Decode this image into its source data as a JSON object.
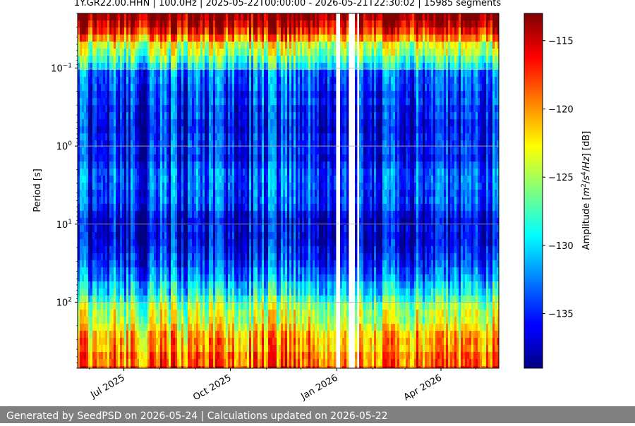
{
  "chart_data": {
    "type": "heatmap",
    "title": "1Y.GR22.00.HHN | 100.0Hz | 2025-05-22T00:00:00 - 2026-05-21T22:30:02 | 15985 segments",
    "xlabel": "",
    "ylabel": "Period [s]",
    "colorbar_label": "Amplitude [m²/s⁴/Hz] [dB]",
    "colorbar_label_parts": [
      "Amplitude [",
      "m",
      "2",
      "/",
      "s",
      "4",
      "/",
      "Hz",
      "] [dB]"
    ],
    "colormap": "jet",
    "x_range": [
      "2025-05-22",
      "2026-05-21"
    ],
    "x_ticks": [
      {
        "date": "2025-07-01",
        "label": "Jul 2025"
      },
      {
        "date": "2025-10-01",
        "label": "Oct 2025"
      },
      {
        "date": "2026-01-01",
        "label": "Jan 2026"
      },
      {
        "date": "2026-04-01",
        "label": "Apr 2026"
      }
    ],
    "y_scale": "log",
    "y_inverted": true,
    "y_range": [
      0.02,
      700
    ],
    "y_ticks": [
      {
        "value": 0.1,
        "base": "10",
        "exp": "−1"
      },
      {
        "value": 1,
        "base": "10",
        "exp": "0"
      },
      {
        "value": 10,
        "base": "10",
        "exp": "1"
      },
      {
        "value": 100,
        "base": "10",
        "exp": "2"
      }
    ],
    "colorbar_range": [
      -139,
      -113
    ],
    "colorbar_ticks": [
      -115,
      -120,
      -125,
      -130,
      -135
    ],
    "colorbar_tick_labels": [
      "−115",
      "−120",
      "−125",
      "−130",
      "−135"
    ],
    "data_gaps": [
      [
        "2026-01-01",
        "2026-01-04"
      ],
      [
        "2026-01-11",
        "2026-01-16"
      ],
      [
        "2026-01-18",
        "2026-01-21"
      ]
    ],
    "grid": true,
    "segments": 15985,
    "spectral_profile": [
      {
        "period": 0.02,
        "amplitude_db": -113
      },
      {
        "period": 0.03,
        "amplitude_db": -115
      },
      {
        "period": 0.05,
        "amplitude_db": -124
      },
      {
        "period": 0.08,
        "amplitude_db": -127
      },
      {
        "period": 0.12,
        "amplitude_db": -134
      },
      {
        "period": 1,
        "amplitude_db": -136
      },
      {
        "period": 3,
        "amplitude_db": -133
      },
      {
        "period": 10,
        "amplitude_db": -137
      },
      {
        "period": 40,
        "amplitude_db": -134
      },
      {
        "period": 100,
        "amplitude_db": -127
      },
      {
        "period": 300,
        "amplitude_db": -121
      },
      {
        "period": 700,
        "amplitude_db": -118
      }
    ]
  },
  "footer": {
    "text": "Generated by SeedPSD on 2026-05-24 | Calculations updated on 2026-05-22"
  }
}
